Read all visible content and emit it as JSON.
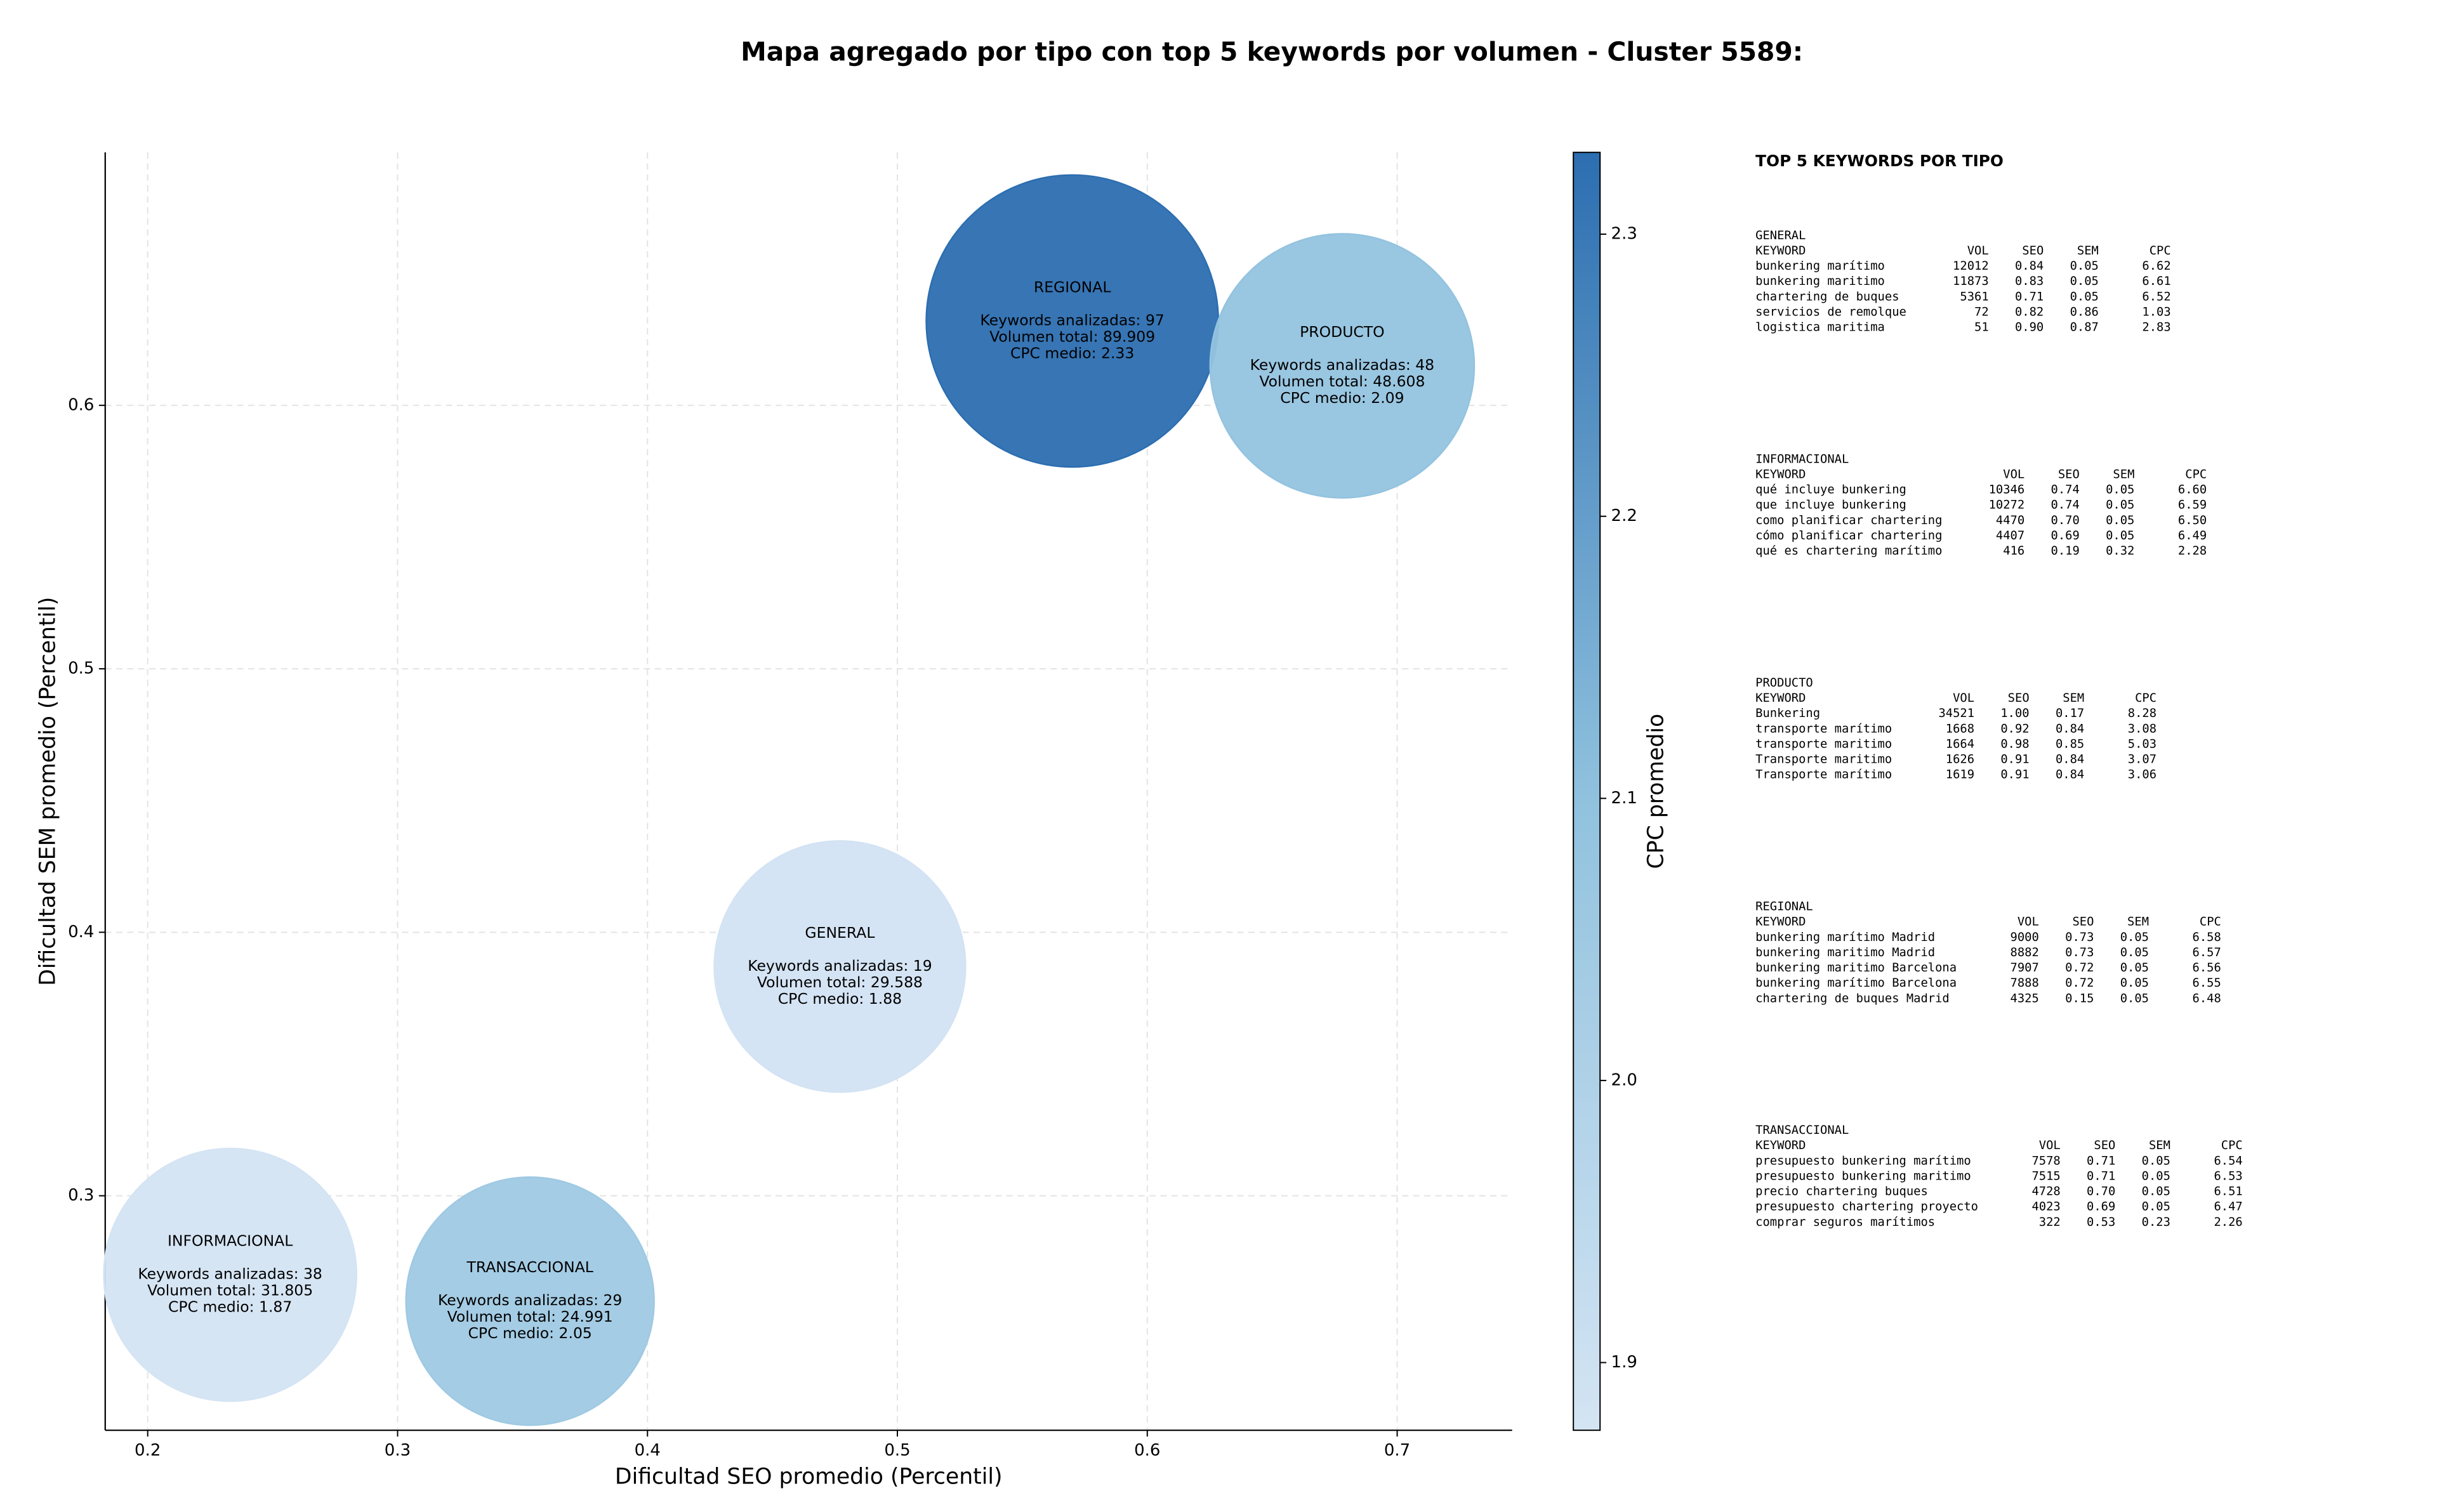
{
  "chart_data": {
    "type": "bubble",
    "title": "Mapa agregado por tipo con top 5 keywords por volumen - Cluster 5589:",
    "x_label": "Dificultad SEO promedio (Percentil)",
    "y_label": "Dificultad SEM promedio (Percentil)",
    "colorbar_label": "CPC promedio",
    "xlim": [
      0.183,
      0.746
    ],
    "ylim": [
      0.211,
      0.696
    ],
    "xticks": [
      0.2,
      0.3,
      0.4,
      0.5,
      0.6,
      0.7
    ],
    "yticks": [
      0.3,
      0.4,
      0.5,
      0.6
    ],
    "clim": [
      1.876,
      2.329
    ],
    "cticks": [
      1.9,
      2.0,
      2.1,
      2.2,
      2.3
    ],
    "colormap": [
      "#d4e4f3",
      "#8fc1de",
      "#2c6eb0"
    ],
    "grid": true,
    "points": [
      {
        "name": "REGIONAL",
        "x": 0.57,
        "y": 0.632,
        "cpc": 2.33,
        "volume": 89909,
        "lines": [
          "Keywords analizadas: 97",
          "Volumen total: 89.909",
          "CPC medio: 2.33"
        ]
      },
      {
        "name": "PRODUCTO",
        "x": 0.678,
        "y": 0.615,
        "cpc": 2.09,
        "volume": 48608,
        "lines": [
          "Keywords analizadas: 48",
          "Volumen total: 48.608",
          "CPC medio: 2.09"
        ]
      },
      {
        "name": "GENERAL",
        "x": 0.477,
        "y": 0.387,
        "cpc": 1.88,
        "volume": 29588,
        "lines": [
          "Keywords analizadas: 19",
          "Volumen total: 29.588",
          "CPC medio: 1.88"
        ]
      },
      {
        "name": "INFORMACIONAL",
        "x": 0.233,
        "y": 0.27,
        "cpc": 1.87,
        "volume": 31805,
        "lines": [
          "Keywords analizadas: 38",
          "Volumen total: 31.805",
          "CPC medio: 1.87"
        ]
      },
      {
        "name": "TRANSACCIONAL",
        "x": 0.353,
        "y": 0.26,
        "cpc": 2.05,
        "volume": 24991,
        "lines": [
          "Keywords analizadas: 29",
          "Volumen total: 24.991",
          "CPC medio: 2.05"
        ]
      }
    ],
    "panel": {
      "title": "TOP 5 KEYWORDS POR TIPO",
      "header": [
        "KEYWORD",
        "VOL",
        "SEO",
        "SEM",
        "CPC"
      ],
      "sections": [
        {
          "name": "GENERAL",
          "rows": [
            [
              "bunkering marítimo",
              "12012",
              "0.84",
              "0.05",
              "6.62"
            ],
            [
              "bunkering maritimo",
              "11873",
              "0.83",
              "0.05",
              "6.61"
            ],
            [
              "chartering de buques",
              "5361",
              "0.71",
              "0.05",
              "6.52"
            ],
            [
              "servicios de remolque",
              "72",
              "0.82",
              "0.86",
              "1.03"
            ],
            [
              "logistica maritima",
              "51",
              "0.90",
              "0.87",
              "2.83"
            ]
          ]
        },
        {
          "name": "INFORMACIONAL",
          "rows": [
            [
              "qué incluye bunkering",
              "10346",
              "0.74",
              "0.05",
              "6.60"
            ],
            [
              "que incluye bunkering",
              "10272",
              "0.74",
              "0.05",
              "6.59"
            ],
            [
              "como planificar chartering",
              "4470",
              "0.70",
              "0.05",
              "6.50"
            ],
            [
              "cómo planificar chartering",
              "4407",
              "0.69",
              "0.05",
              "6.49"
            ],
            [
              "qué es chartering marítimo",
              "416",
              "0.19",
              "0.32",
              "2.28"
            ]
          ]
        },
        {
          "name": "PRODUCTO",
          "rows": [
            [
              "Bunkering",
              "34521",
              "1.00",
              "0.17",
              "8.28"
            ],
            [
              "transporte marítimo",
              "1668",
              "0.92",
              "0.84",
              "3.08"
            ],
            [
              "transporte maritimo",
              "1664",
              "0.98",
              "0.85",
              "5.03"
            ],
            [
              "Transporte maritimo",
              "1626",
              "0.91",
              "0.84",
              "3.07"
            ],
            [
              "Transporte marítimo",
              "1619",
              "0.91",
              "0.84",
              "3.06"
            ]
          ]
        },
        {
          "name": "REGIONAL",
          "rows": [
            [
              "bunkering marítimo Madrid",
              "9000",
              "0.73",
              "0.05",
              "6.58"
            ],
            [
              "bunkering maritimo Madrid",
              "8882",
              "0.73",
              "0.05",
              "6.57"
            ],
            [
              "bunkering maritimo Barcelona",
              "7907",
              "0.72",
              "0.05",
              "6.56"
            ],
            [
              "bunkering marítimo Barcelona",
              "7888",
              "0.72",
              "0.05",
              "6.55"
            ],
            [
              "chartering de buques Madrid",
              "4325",
              "0.15",
              "0.05",
              "6.48"
            ]
          ]
        },
        {
          "name": "TRANSACCIONAL",
          "rows": [
            [
              "presupuesto bunkering marítimo",
              "7578",
              "0.71",
              "0.05",
              "6.54"
            ],
            [
              "presupuesto bunkering maritimo",
              "7515",
              "0.71",
              "0.05",
              "6.53"
            ],
            [
              "precio chartering buques",
              "4728",
              "0.70",
              "0.05",
              "6.51"
            ],
            [
              "presupuesto chartering proyecto",
              "4023",
              "0.69",
              "0.05",
              "6.47"
            ],
            [
              "comprar seguros marítimos",
              "322",
              "0.53",
              "0.23",
              "2.26"
            ]
          ]
        }
      ]
    }
  }
}
